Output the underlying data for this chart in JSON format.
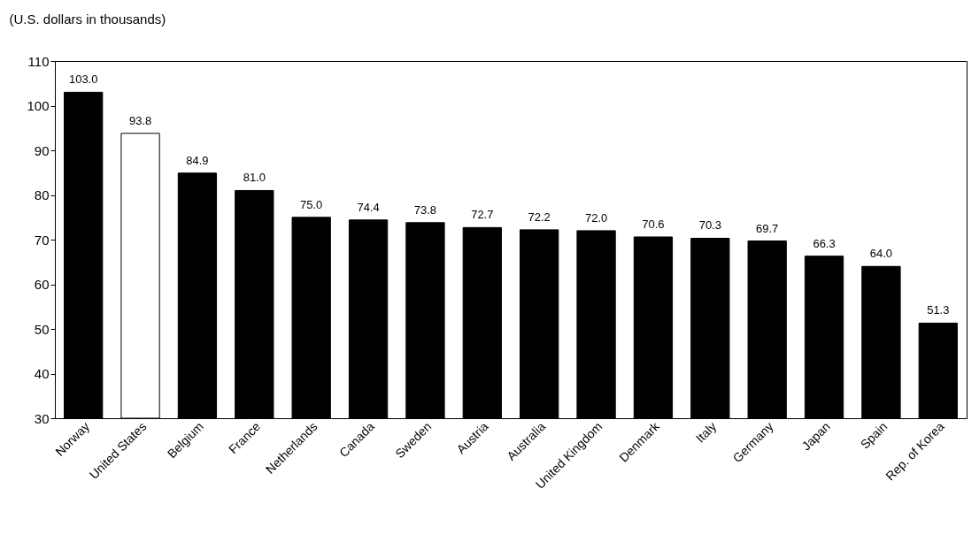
{
  "chart_data": {
    "type": "bar",
    "ylabel": "(U.S. dollars in thousands)",
    "categories": [
      "Norway",
      "United States",
      "Belgium",
      "France",
      "Netherlands",
      "Canada",
      "Sweden",
      "Austria",
      "Australia",
      "United Kingdom",
      "Denmark",
      "Italy",
      "Germany",
      "Japan",
      "Spain",
      "Rep. of Korea"
    ],
    "values": [
      103.0,
      93.8,
      84.9,
      81.0,
      75.0,
      74.4,
      73.8,
      72.7,
      72.2,
      72.0,
      70.6,
      70.3,
      69.7,
      66.3,
      64.0,
      51.3
    ],
    "colors": [
      "#000000",
      "#ffffff",
      "#000000",
      "#000000",
      "#000000",
      "#000000",
      "#000000",
      "#000000",
      "#000000",
      "#000000",
      "#000000",
      "#000000",
      "#000000",
      "#000000",
      "#000000",
      "#000000"
    ],
    "value_labels": [
      "103.0",
      "93.8",
      "84.9",
      "81.0",
      "75.0",
      "74.4",
      "73.8",
      "72.7",
      "72.2",
      "72.0",
      "70.6",
      "70.3",
      "69.7",
      "66.3",
      "64.0",
      "51.3"
    ],
    "ylim": [
      30,
      110
    ],
    "yticks": [
      30,
      40,
      50,
      60,
      70,
      80,
      90,
      100,
      110
    ],
    "grid": false
  }
}
